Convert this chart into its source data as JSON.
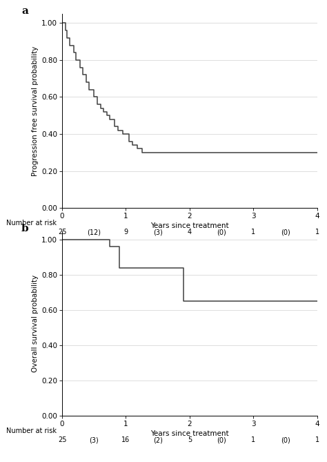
{
  "panel_a": {
    "label": "a",
    "ylabel": "Progression free survival probability",
    "xlabel": "Years since treatment",
    "ytick_vals": [
      0.0,
      0.2,
      0.4,
      0.6,
      0.8,
      1.0
    ],
    "ytick_labels": [
      "0.00",
      "0.20",
      "0.40",
      "0.60",
      "0.80",
      "1.00"
    ],
    "xticks": [
      0,
      1,
      2,
      3,
      4
    ],
    "xlim": [
      0,
      4
    ],
    "ylim": [
      0.0,
      1.05
    ],
    "km_x": [
      0,
      0.05,
      0.08,
      0.12,
      0.18,
      0.22,
      0.28,
      0.32,
      0.38,
      0.42,
      0.5,
      0.55,
      0.6,
      0.65,
      0.7,
      0.75,
      0.82,
      0.88,
      0.95,
      1.05,
      1.1,
      1.18,
      1.25,
      1.42,
      1.75,
      4.0
    ],
    "km_y": [
      1.0,
      0.96,
      0.92,
      0.88,
      0.84,
      0.8,
      0.76,
      0.72,
      0.68,
      0.64,
      0.6,
      0.56,
      0.54,
      0.52,
      0.5,
      0.48,
      0.44,
      0.42,
      0.4,
      0.36,
      0.34,
      0.32,
      0.3,
      0.3,
      0.3,
      0.3
    ],
    "risk_label": "Number at risk",
    "risk_times": [
      0,
      0.5,
      1,
      1.5,
      2,
      2.5,
      3,
      3.5,
      4
    ],
    "risk_numbers": [
      "25",
      "(12)",
      "9",
      "(3)",
      "4",
      "(0)",
      "1",
      "(0)",
      "1"
    ],
    "line_color": "#404040"
  },
  "panel_b": {
    "label": "b",
    "ylabel": "Overall survival probability",
    "xlabel": "Years since treatment",
    "ytick_vals": [
      0.0,
      0.2,
      0.4,
      0.6,
      0.8,
      1.0
    ],
    "ytick_labels": [
      "0.00",
      "0.20",
      "0.40",
      "0.60",
      "0.80",
      "1.00"
    ],
    "xticks": [
      0,
      1,
      2,
      3,
      4
    ],
    "xlim": [
      0,
      4
    ],
    "ylim": [
      0.0,
      1.05
    ],
    "km_x": [
      0,
      0.62,
      0.75,
      0.9,
      1.02,
      1.8,
      1.9,
      4.0
    ],
    "km_y": [
      1.0,
      1.0,
      0.96,
      0.84,
      0.84,
      0.84,
      0.65,
      0.65
    ],
    "risk_label": "Number at risk",
    "risk_times": [
      0,
      0.5,
      1,
      1.5,
      2,
      2.5,
      3,
      3.5,
      4
    ],
    "risk_numbers": [
      "25",
      "(3)",
      "16",
      "(2)",
      "5",
      "(0)",
      "1",
      "(0)",
      "1"
    ],
    "line_color": "#404040"
  },
  "bg_color": "#ffffff",
  "axis_fontsize": 7.5,
  "tick_fontsize": 7.5,
  "label_fontsize": 11,
  "risk_fontsize": 7.0,
  "line_width": 1.1,
  "grid_color": "#d0d0d0",
  "grid_lw": 0.5
}
